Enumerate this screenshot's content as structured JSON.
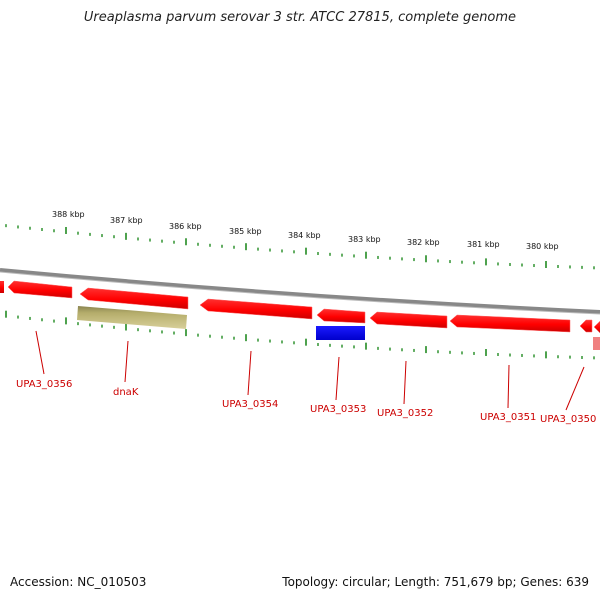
{
  "title": "Ureaplasma parvum serovar 3 str. ATCC 27815, complete genome",
  "footer": {
    "accession": "Accession: NC_010503",
    "summary": "Topology: circular; Length: 751,679 bp; Genes: 639"
  },
  "scale": {
    "unit": "kbp",
    "ticks": [
      {
        "label": "388 kbp"
      },
      {
        "label": "387 kbp"
      },
      {
        "label": "386 kbp"
      },
      {
        "label": "385 kbp"
      },
      {
        "label": "384 kbp"
      },
      {
        "label": "383 kbp"
      },
      {
        "label": "382 kbp"
      },
      {
        "label": "381 kbp"
      },
      {
        "label": "380 kbp"
      }
    ]
  },
  "genes": [
    {
      "label": "UPA3_0356"
    },
    {
      "label": "dnaK"
    },
    {
      "label": "UPA3_0354"
    },
    {
      "label": "UPA3_0353"
    },
    {
      "label": "UPA3_0352"
    },
    {
      "label": "UPA3_0351"
    },
    {
      "label": "UPA3_0350"
    }
  ],
  "colors": {
    "forward_strand_gene": "#ff0000",
    "dnaK_gene": "#b5ad6b",
    "UPA3_0353_gene": "#0000ee",
    "partial_gene": "#f08080",
    "tick": "#228b22",
    "backbone": "#888888",
    "label": "#cc0000"
  }
}
